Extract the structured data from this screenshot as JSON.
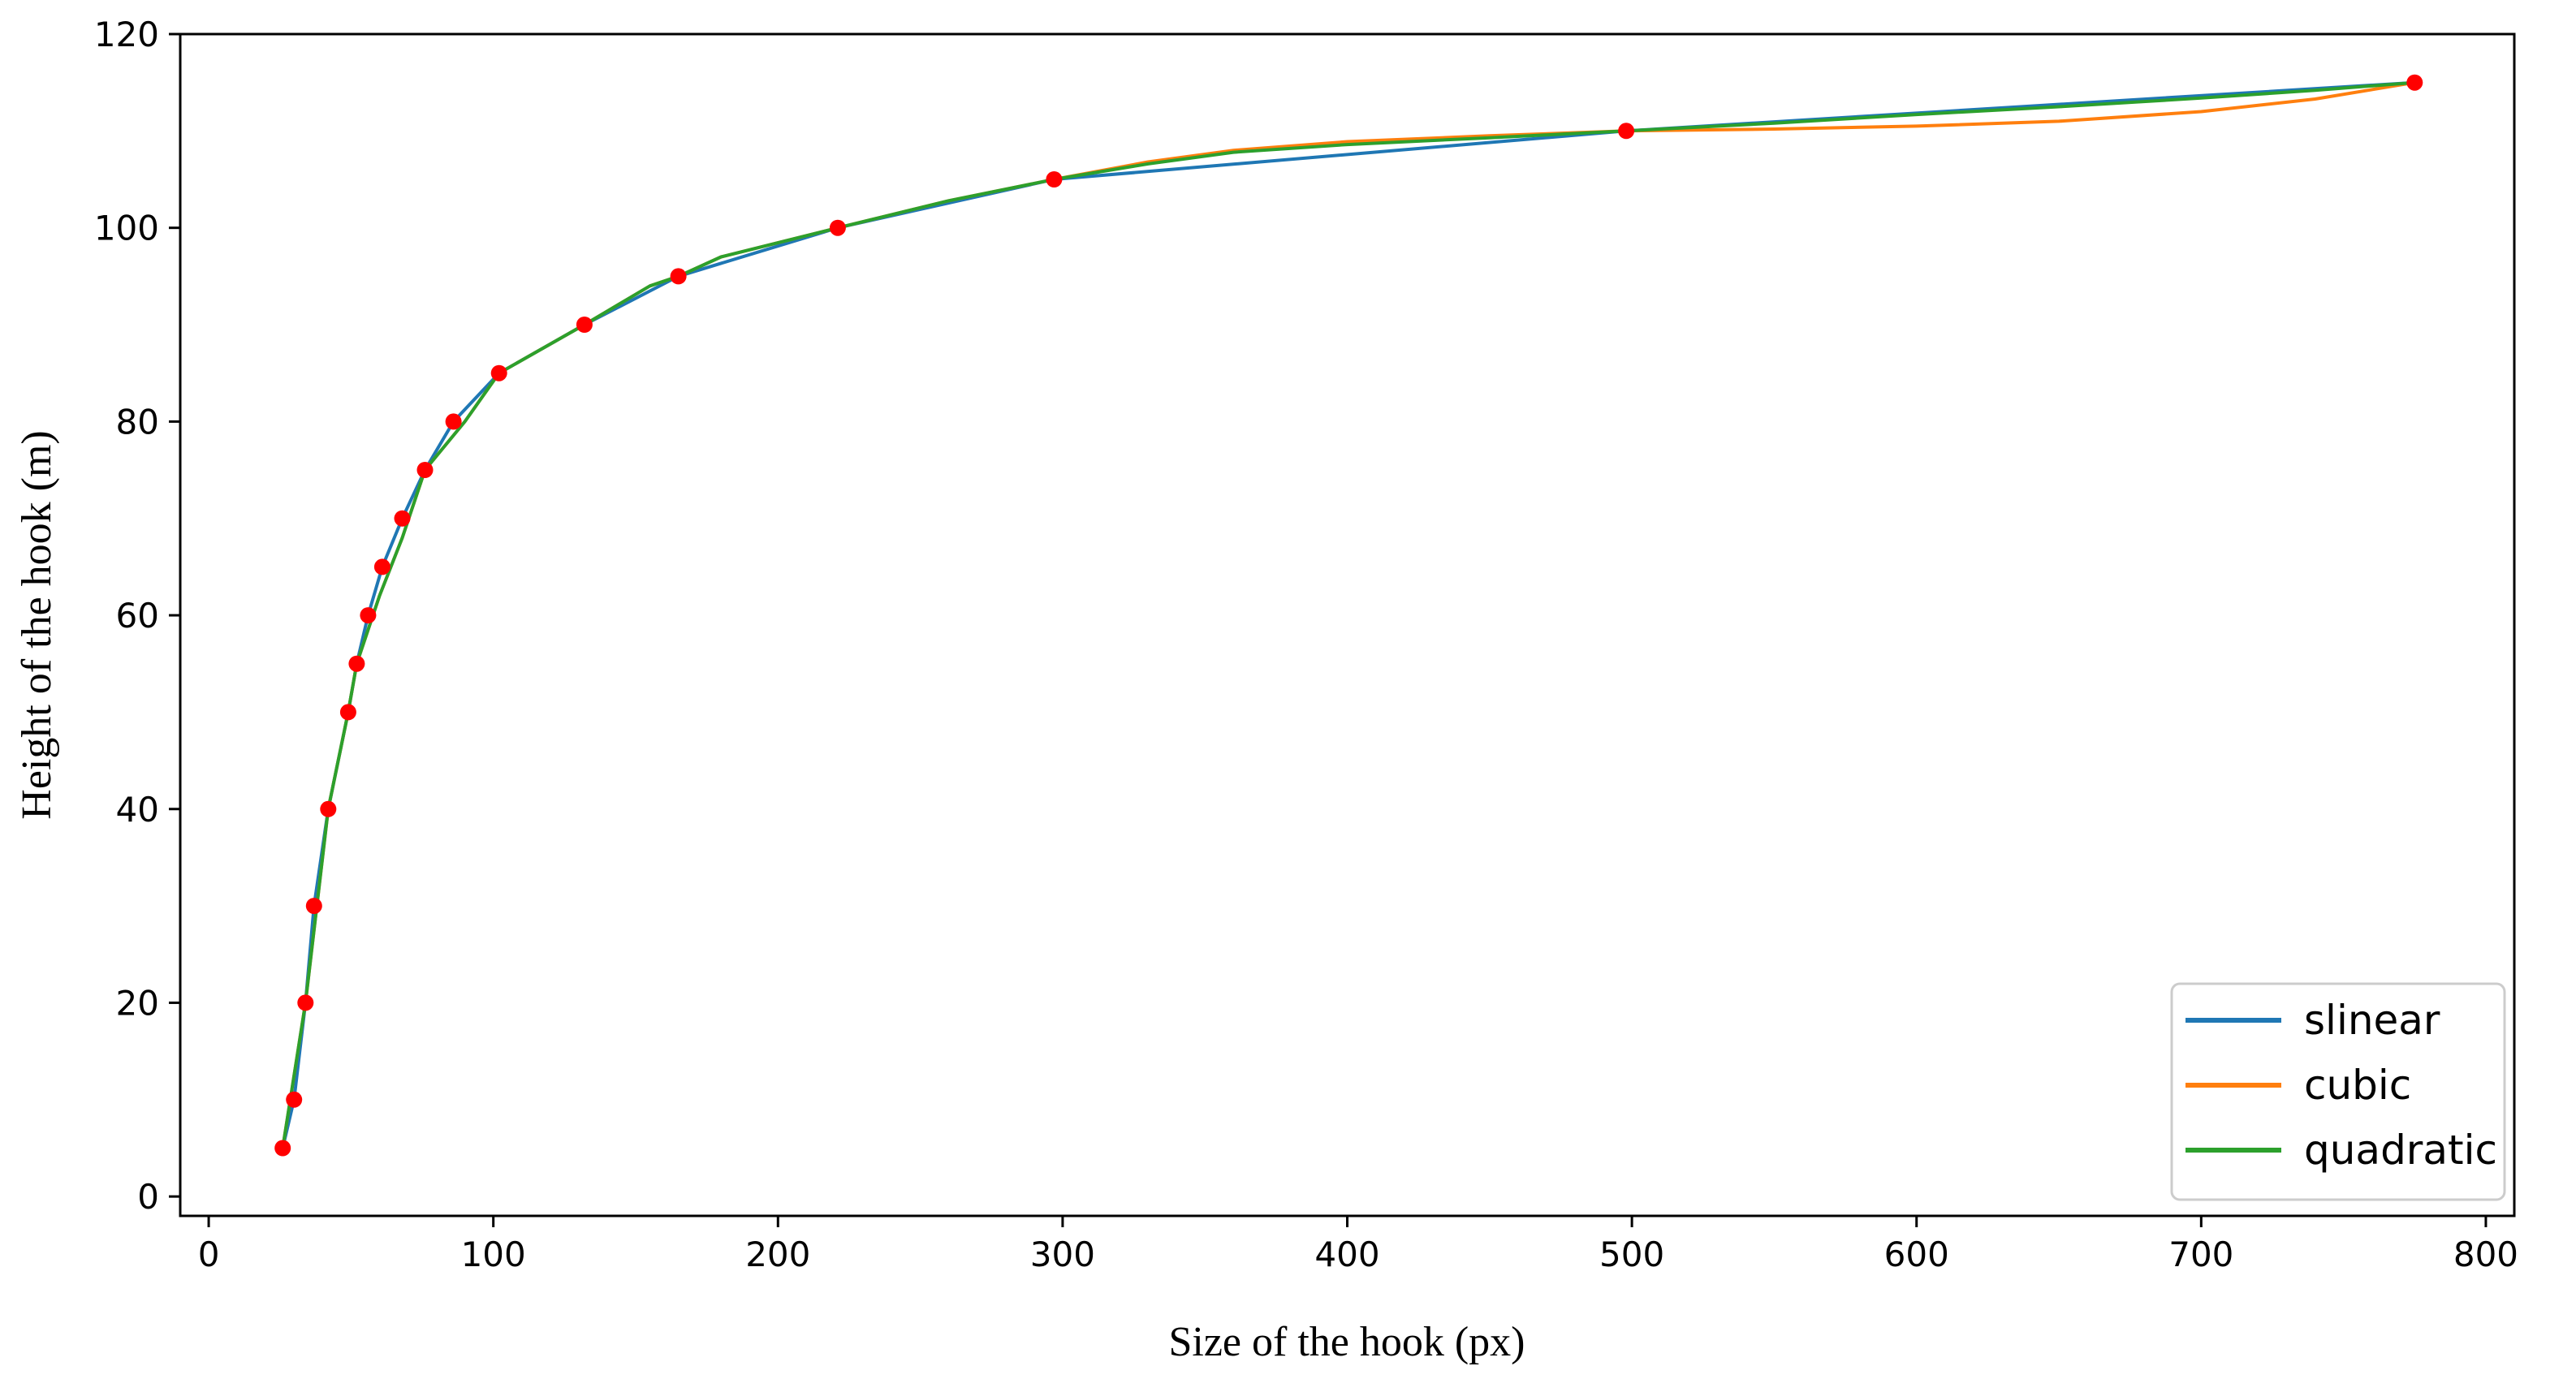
{
  "chart_data": {
    "type": "line",
    "xlabel": "Size of the hook (px)",
    "ylabel": "Height of the hook (m)",
    "xlim": [
      -10,
      810
    ],
    "ylim": [
      -2,
      120
    ],
    "xticks": [
      0,
      100,
      200,
      300,
      400,
      500,
      600,
      700,
      800
    ],
    "yticks": [
      0,
      20,
      40,
      60,
      80,
      100,
      120
    ],
    "grid": false,
    "legend_position": "bottom-right",
    "scatter_points": {
      "color": "#ff0000",
      "x": [
        26,
        30,
        34,
        37,
        42,
        49,
        52,
        56,
        61,
        68,
        76,
        86,
        102,
        132,
        165,
        221,
        297,
        498,
        775
      ],
      "y": [
        5,
        10,
        20,
        30,
        40,
        50,
        55,
        60,
        65,
        70,
        75,
        80,
        85,
        90,
        95,
        100,
        105,
        110,
        115
      ]
    },
    "series": [
      {
        "name": "slinear",
        "color": "#1f77b4",
        "x": [
          26,
          30,
          34,
          37,
          42,
          49,
          52,
          56,
          61,
          68,
          76,
          86,
          102,
          132,
          165,
          221,
          297,
          498,
          775
        ],
        "y": [
          5,
          10,
          20,
          30,
          40,
          50,
          55,
          60,
          65,
          70,
          75,
          80,
          85,
          90,
          95,
          100,
          105,
          110,
          115
        ]
      },
      {
        "name": "cubic",
        "color": "#ff7f0e",
        "x": [
          26,
          34,
          42,
          49,
          52,
          60,
          68,
          76,
          90,
          102,
          132,
          155,
          165,
          180,
          221,
          260,
          297,
          330,
          360,
          400,
          450,
          498,
          550,
          600,
          650,
          700,
          740,
          775
        ],
        "y": [
          5,
          20,
          40,
          50,
          55,
          62,
          68,
          75,
          80,
          85,
          90,
          94,
          95,
          97,
          100,
          102.8,
          105,
          106.8,
          108,
          108.9,
          109.5,
          110,
          110.2,
          110.5,
          111,
          112,
          113.3,
          115
        ]
      },
      {
        "name": "quadratic",
        "color": "#2ca02c",
        "x": [
          26,
          34,
          42,
          49,
          52,
          60,
          68,
          76,
          90,
          102,
          132,
          155,
          165,
          180,
          221,
          260,
          297,
          330,
          360,
          400,
          450,
          498,
          550,
          600,
          650,
          700,
          740,
          775
        ],
        "y": [
          5,
          20,
          40,
          50,
          55,
          62,
          68,
          75,
          80,
          85,
          90,
          94,
          95,
          97,
          100,
          102.8,
          105,
          106.6,
          107.8,
          108.6,
          109.3,
          110,
          110.8,
          111.7,
          112.5,
          113.4,
          114.2,
          115
        ]
      }
    ]
  }
}
